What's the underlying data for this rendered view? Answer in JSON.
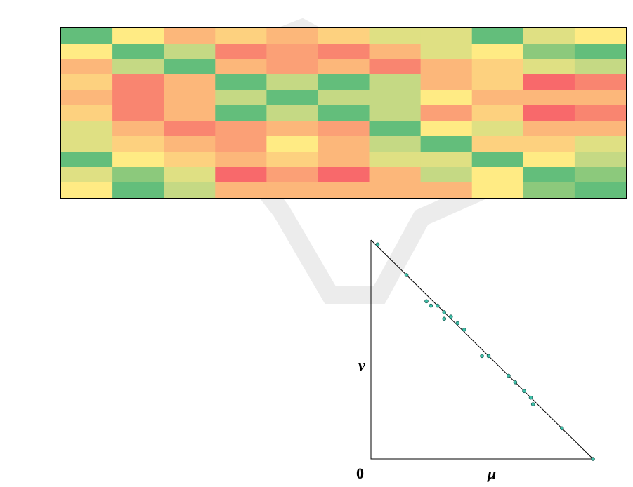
{
  "figure": {
    "origin_label": "0",
    "x_axis_label": "μ",
    "y_axis_label": "ν"
  },
  "colors": {
    "dark_green": "#63be7b",
    "green": "#8cc97c",
    "light_green": "#c5d984",
    "yellow_green": "#dfe083",
    "yellow": "#ffeb84",
    "light_orange": "#fdd17f",
    "orange": "#fcb77a",
    "dark_orange": "#fba076",
    "red_orange": "#f98570",
    "red": "#f8696b",
    "point_fill": "#3fbfa8",
    "line": "#000000"
  },
  "chart_data": [
    {
      "type": "heatmap",
      "rows": 11,
      "columns": 11,
      "color_scale": [
        "dark_green",
        "green",
        "light_green",
        "yellow_green",
        "yellow",
        "light_orange",
        "orange",
        "dark_orange",
        "red_orange",
        "red"
      ],
      "cells": [
        [
          "dark_green",
          "yellow",
          "orange",
          "light_orange",
          "orange",
          "light_orange",
          "yellow_green",
          "yellow_green",
          "dark_green",
          "yellow_green",
          "yellow"
        ],
        [
          "yellow",
          "dark_green",
          "light_green",
          "red_orange",
          "dark_orange",
          "red_orange",
          "orange",
          "yellow_green",
          "yellow",
          "green",
          "dark_green"
        ],
        [
          "orange",
          "light_green",
          "dark_green",
          "orange",
          "dark_orange",
          "orange",
          "red_orange",
          "orange",
          "light_orange",
          "yellow_green",
          "light_green"
        ],
        [
          "light_orange",
          "red_orange",
          "orange",
          "dark_green",
          "light_green",
          "dark_green",
          "light_green",
          "orange",
          "light_orange",
          "red",
          "red_orange"
        ],
        [
          "orange",
          "red_orange",
          "orange",
          "light_green",
          "dark_green",
          "light_green",
          "light_green",
          "yellow",
          "orange",
          "orange",
          "orange"
        ],
        [
          "light_orange",
          "red_orange",
          "orange",
          "dark_green",
          "light_green",
          "dark_green",
          "light_green",
          "dark_orange",
          "light_orange",
          "red",
          "red_orange"
        ],
        [
          "yellow_green",
          "orange",
          "red_orange",
          "dark_orange",
          "orange",
          "dark_orange",
          "dark_green",
          "yellow",
          "yellow_green",
          "orange",
          "orange"
        ],
        [
          "yellow_green",
          "light_orange",
          "orange",
          "dark_orange",
          "yellow",
          "orange",
          "light_green",
          "dark_green",
          "light_orange",
          "light_orange",
          "yellow_green"
        ],
        [
          "dark_green",
          "yellow",
          "light_orange",
          "orange",
          "light_orange",
          "orange",
          "yellow_green",
          "yellow_green",
          "dark_green",
          "yellow",
          "light_green"
        ],
        [
          "yellow_green",
          "green",
          "yellow_green",
          "red",
          "dark_orange",
          "red",
          "orange",
          "light_green",
          "yellow",
          "dark_green",
          "green"
        ],
        [
          "yellow",
          "dark_green",
          "light_green",
          "orange",
          "orange",
          "orange",
          "orange",
          "orange",
          "yellow",
          "green",
          "dark_green"
        ]
      ]
    },
    {
      "type": "scatter",
      "xlabel": "μ",
      "ylabel": "ν",
      "xlim": [
        0,
        1
      ],
      "ylim": [
        0,
        1
      ],
      "reference_line": {
        "from": [
          0,
          1
        ],
        "to": [
          1,
          0
        ]
      },
      "points": [
        [
          0.03,
          0.98
        ],
        [
          0.16,
          0.84
        ],
        [
          0.25,
          0.72
        ],
        [
          0.27,
          0.7
        ],
        [
          0.3,
          0.7
        ],
        [
          0.33,
          0.67
        ],
        [
          0.33,
          0.64
        ],
        [
          0.36,
          0.65
        ],
        [
          0.39,
          0.62
        ],
        [
          0.42,
          0.59
        ],
        [
          0.5,
          0.47
        ],
        [
          0.53,
          0.47
        ],
        [
          0.62,
          0.38
        ],
        [
          0.65,
          0.35
        ],
        [
          0.69,
          0.31
        ],
        [
          0.72,
          0.28
        ],
        [
          0.73,
          0.25
        ],
        [
          0.86,
          0.14
        ],
        [
          1.0,
          0.0
        ]
      ]
    }
  ]
}
